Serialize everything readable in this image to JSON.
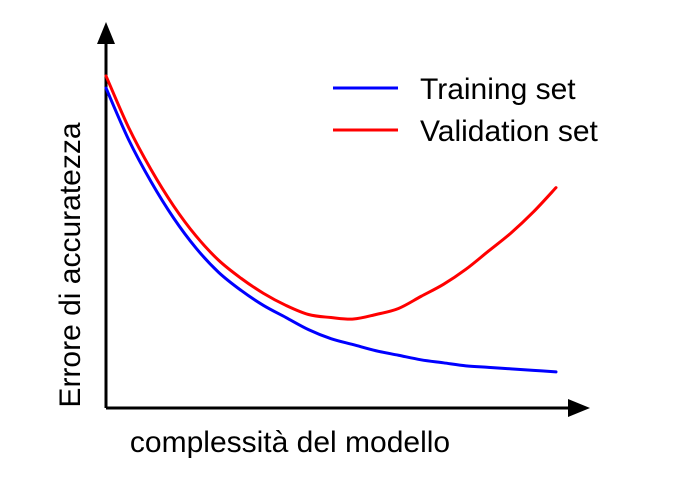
{
  "chart_data": {
    "type": "line",
    "title": "",
    "xlabel": "complessità del modello",
    "ylabel": "Errore di accuratezza",
    "xlim": [
      0,
      100
    ],
    "ylim": [
      0,
      100
    ],
    "grid": false,
    "axis_ticks": false,
    "legend_position": "top-right",
    "series": [
      {
        "name": "Training set",
        "color": "#0000ff",
        "x": [
          0,
          5,
          10,
          15,
          20,
          25,
          30,
          35,
          40,
          45,
          50,
          55,
          60,
          65,
          70,
          75,
          80,
          85,
          90,
          95,
          100
        ],
        "y": [
          100,
          83,
          69,
          57,
          47,
          39,
          33,
          28,
          24,
          20,
          17,
          15,
          13,
          11.5,
          10,
          9,
          8,
          7.5,
          7,
          6.5,
          6
        ]
      },
      {
        "name": "Validation set",
        "color": "#ff0000",
        "x": [
          0,
          5,
          10,
          15,
          20,
          25,
          30,
          35,
          40,
          45,
          50,
          55,
          60,
          65,
          70,
          75,
          80,
          85,
          90,
          95,
          100
        ],
        "y": [
          104,
          87,
          73,
          61,
          51,
          43,
          37,
          32,
          28,
          25,
          24,
          23.5,
          25,
          27,
          31,
          35,
          40,
          46,
          52,
          59,
          67
        ]
      }
    ]
  }
}
